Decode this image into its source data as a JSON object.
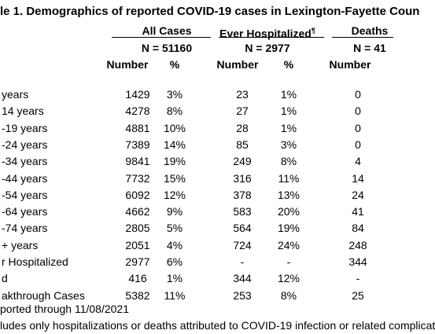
{
  "title": "le 1. Demographics of reported COVID-19 cases in Lexington-Fayette Coun",
  "table": {
    "groups": [
      "All Cases",
      "Ever Hospitalized",
      "Deaths"
    ],
    "groups_mark": "¶",
    "group_n": [
      "N = 51160",
      "N = 2977",
      "N = 41"
    ],
    "columns": [
      "Number",
      "%",
      "Number",
      "%",
      "Number"
    ],
    "rows": [
      [
        " years",
        "1429",
        "3%",
        "23",
        "1%",
        "0"
      ],
      [
        "14 years",
        "4278",
        "8%",
        "27",
        "1%",
        "0"
      ],
      [
        "-19 years",
        "4881",
        "10%",
        "28",
        "1%",
        "0"
      ],
      [
        "-24 years",
        "7389",
        "14%",
        "85",
        "3%",
        "0"
      ],
      [
        "-34 years",
        "9841",
        "19%",
        "249",
        "8%",
        "4"
      ],
      [
        "-44 years",
        "7732",
        "15%",
        "316",
        "11%",
        "14"
      ],
      [
        "-54 years",
        "6092",
        "12%",
        "378",
        "13%",
        "24"
      ],
      [
        "-64 years",
        "4662",
        "9%",
        "583",
        "20%",
        "41"
      ],
      [
        "-74 years",
        "2805",
        "5%",
        "564",
        "19%",
        "84"
      ],
      [
        "+ years",
        "2051",
        "4%",
        "724",
        "24%",
        "248"
      ],
      [
        "r Hospitalized",
        "2977",
        "6%",
        "-",
        "-",
        "344"
      ],
      [
        "d",
        "416",
        "1%",
        "344",
        "12%",
        "-"
      ],
      [
        "akthrough Cases",
        "5382",
        "11%",
        "253",
        "8%",
        "25"
      ]
    ]
  },
  "footnotes": [
    "ported through 11/08/2021",
    "ludes only hospitalizations or deaths attributed to COVID-19 infection or related complicat"
  ]
}
